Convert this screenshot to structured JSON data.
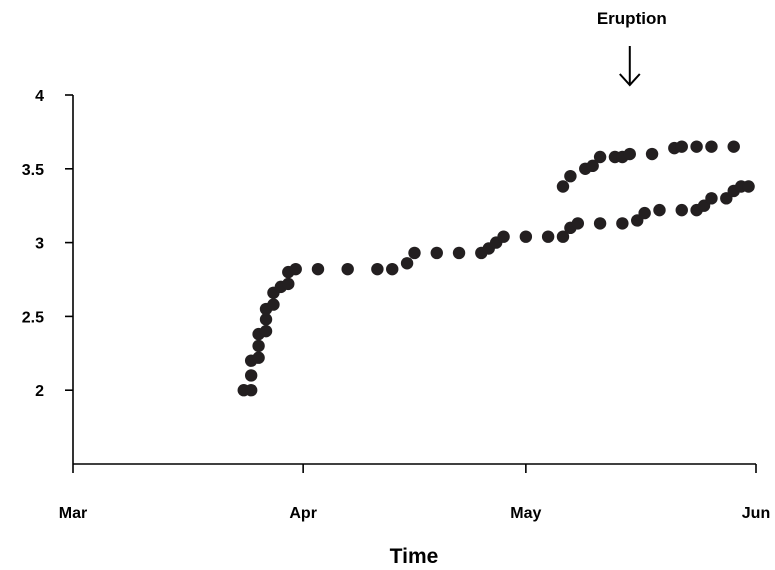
{
  "chart_data": {
    "type": "scatter",
    "title": "",
    "xlabel": "Time",
    "ylabel": "",
    "x_ticks": [
      "Mar",
      "Apr",
      "May",
      "Jun"
    ],
    "y_ticks": [
      "2",
      "2.5",
      "3",
      "3.5",
      "4"
    ],
    "xlim": [
      "Mar 1",
      "Jun 1"
    ],
    "ylim": [
      1.5,
      4
    ],
    "grid": false,
    "marker_color": "#231f20",
    "annotation": {
      "text": "Eruption",
      "date": "May 15",
      "arrow": "down"
    },
    "points": [
      {
        "x": "Mar 24",
        "y": 2.0
      },
      {
        "x": "Mar 25",
        "y": 2.0
      },
      {
        "x": "Mar 25",
        "y": 2.1
      },
      {
        "x": "Mar 25",
        "y": 2.2
      },
      {
        "x": "Mar 26",
        "y": 2.22
      },
      {
        "x": "Mar 26",
        "y": 2.3
      },
      {
        "x": "Mar 26",
        "y": 2.38
      },
      {
        "x": "Mar 27",
        "y": 2.4
      },
      {
        "x": "Mar 27",
        "y": 2.48
      },
      {
        "x": "Mar 27",
        "y": 2.55
      },
      {
        "x": "Mar 28",
        "y": 2.58
      },
      {
        "x": "Mar 28",
        "y": 2.66
      },
      {
        "x": "Mar 29",
        "y": 2.7
      },
      {
        "x": "Mar 30",
        "y": 2.72
      },
      {
        "x": "Mar 30",
        "y": 2.8
      },
      {
        "x": "Mar 31",
        "y": 2.82
      },
      {
        "x": "Apr 3",
        "y": 2.82
      },
      {
        "x": "Apr 7",
        "y": 2.82
      },
      {
        "x": "Apr 11",
        "y": 2.82
      },
      {
        "x": "Apr 13",
        "y": 2.82
      },
      {
        "x": "Apr 15",
        "y": 2.86
      },
      {
        "x": "Apr 16",
        "y": 2.93
      },
      {
        "x": "Apr 19",
        "y": 2.93
      },
      {
        "x": "Apr 22",
        "y": 2.93
      },
      {
        "x": "Apr 25",
        "y": 2.93
      },
      {
        "x": "Apr 26",
        "y": 2.96
      },
      {
        "x": "Apr 27",
        "y": 3.0
      },
      {
        "x": "Apr 28",
        "y": 3.04
      },
      {
        "x": "May 1",
        "y": 3.04
      },
      {
        "x": "May 4",
        "y": 3.04
      },
      {
        "x": "May 6",
        "y": 3.04
      },
      {
        "x": "May 7",
        "y": 3.1
      },
      {
        "x": "May 8",
        "y": 3.13
      },
      {
        "x": "May 11",
        "y": 3.13
      },
      {
        "x": "May 14",
        "y": 3.13
      },
      {
        "x": "May 16",
        "y": 3.15
      },
      {
        "x": "May 17",
        "y": 3.2
      },
      {
        "x": "May 19",
        "y": 3.22
      },
      {
        "x": "May 22",
        "y": 3.22
      },
      {
        "x": "May 24",
        "y": 3.22
      },
      {
        "x": "May 25",
        "y": 3.25
      },
      {
        "x": "May 26",
        "y": 3.3
      },
      {
        "x": "May 28",
        "y": 3.3
      },
      {
        "x": "May 29",
        "y": 3.35
      },
      {
        "x": "May 30",
        "y": 3.38
      },
      {
        "x": "May 31",
        "y": 3.38
      },
      {
        "x": "May 6",
        "y": 3.38
      },
      {
        "x": "May 7",
        "y": 3.45
      },
      {
        "x": "May 9",
        "y": 3.5
      },
      {
        "x": "May 10",
        "y": 3.52
      },
      {
        "x": "May 11",
        "y": 3.58
      },
      {
        "x": "May 13",
        "y": 3.58
      },
      {
        "x": "May 14",
        "y": 3.58
      },
      {
        "x": "May 15",
        "y": 3.6
      },
      {
        "x": "May 18",
        "y": 3.6
      },
      {
        "x": "May 21",
        "y": 3.64
      },
      {
        "x": "May 22",
        "y": 3.65
      },
      {
        "x": "May 24",
        "y": 3.65
      },
      {
        "x": "May 26",
        "y": 3.65
      },
      {
        "x": "May 29",
        "y": 3.65
      }
    ]
  }
}
